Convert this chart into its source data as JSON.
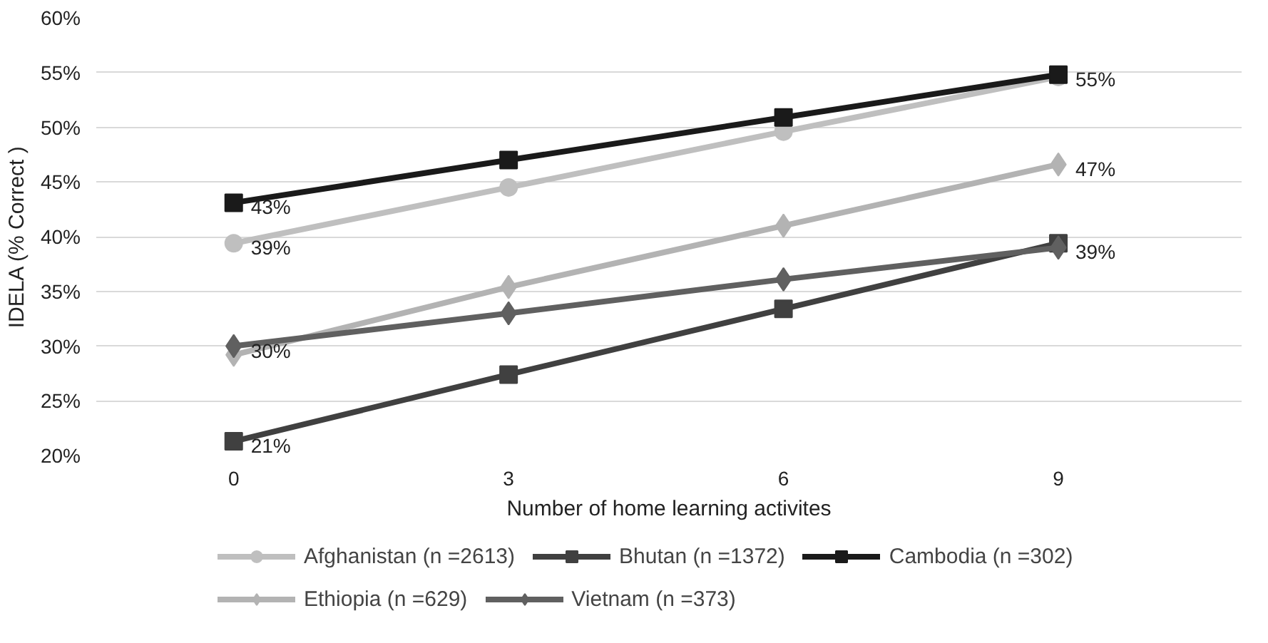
{
  "chart_data": {
    "type": "line",
    "xlabel": "Number of home learning activites",
    "ylabel": "IDELA (% Correct )",
    "x": [
      0,
      3,
      6,
      9
    ],
    "xlim": [
      -1.5,
      11
    ],
    "xticks": [
      0,
      3,
      6,
      9
    ],
    "ylim": [
      20,
      60
    ],
    "yticks": [
      {
        "value": 20,
        "label": "20%"
      },
      {
        "value": 25,
        "label": "25%"
      },
      {
        "value": 30,
        "label": "30%"
      },
      {
        "value": 35,
        "label": "35%"
      },
      {
        "value": 40,
        "label": "40%"
      },
      {
        "value": 45,
        "label": "45%"
      },
      {
        "value": 50,
        "label": "50%"
      },
      {
        "value": 55,
        "label": "55%"
      },
      {
        "value": 60,
        "label": "60%"
      }
    ],
    "grid": "y",
    "legend": "bottom",
    "series": [
      {
        "name": "Afghanistan (n =2613)",
        "color": "#bfbfbf",
        "marker": "circle",
        "values": [
          39.4,
          44.5,
          49.6,
          54.6
        ],
        "value_labels": [
          "39%",
          null,
          null,
          null
        ]
      },
      {
        "name": "Bhutan (n =1372)",
        "color": "#404040",
        "marker": "square",
        "values": [
          21.3,
          27.4,
          33.4,
          39.4
        ],
        "value_labels": [
          "21%",
          null,
          null,
          null
        ]
      },
      {
        "name": "Cambodia (n =302)",
        "color": "#1a1a1a",
        "marker": "square",
        "values": [
          43.1,
          47.0,
          50.9,
          54.8
        ],
        "value_labels": [
          "43%",
          null,
          null,
          "55%"
        ]
      },
      {
        "name": "Ethiopia (n =629)",
        "color": "#b3b3b3",
        "marker": "diamond",
        "values": [
          29.2,
          35.4,
          41.0,
          46.6
        ],
        "value_labels": [
          null,
          null,
          null,
          "47%"
        ]
      },
      {
        "name": "Vietnam (n =373)",
        "color": "#606060",
        "marker": "diamond",
        "values": [
          30.0,
          33.0,
          36.1,
          39.0
        ],
        "value_labels": [
          "30%",
          null,
          null,
          "39%"
        ]
      }
    ]
  }
}
